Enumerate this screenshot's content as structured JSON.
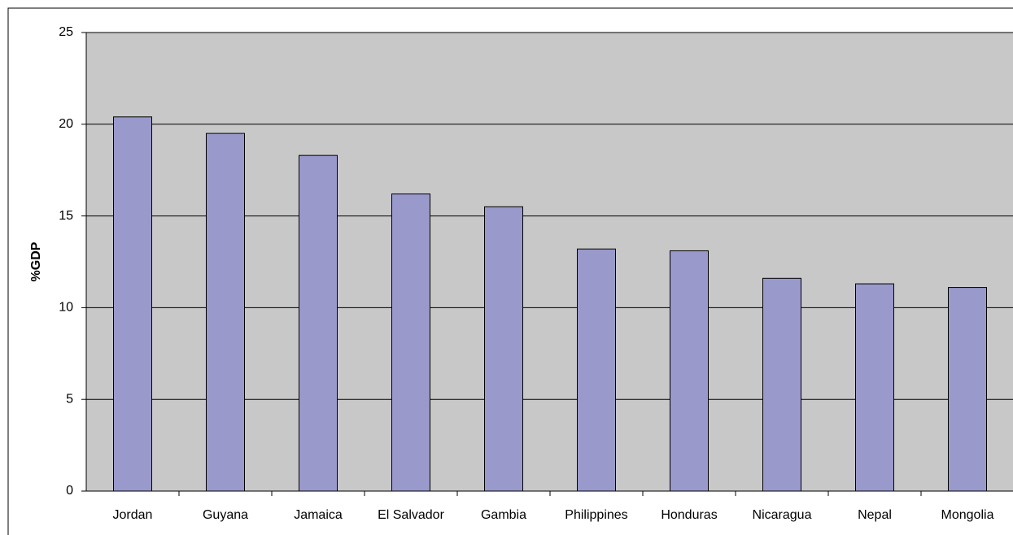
{
  "chart_data": {
    "type": "bar",
    "y_label": "%GDP",
    "categories": [
      "Jordan",
      "Guyana",
      "Jamaica",
      "El Salvador",
      "Gambia",
      "Philippines",
      "Honduras",
      "Nicaragua",
      "Nepal",
      "Mongolia"
    ],
    "values": [
      20.4,
      19.5,
      18.3,
      16.2,
      15.5,
      13.2,
      13.1,
      11.6,
      11.3,
      11.1
    ],
    "color": "#9999cc",
    "ylim": [
      0,
      25
    ],
    "yticks": [
      0,
      5,
      10,
      15,
      20,
      25
    ],
    "grid": true
  }
}
